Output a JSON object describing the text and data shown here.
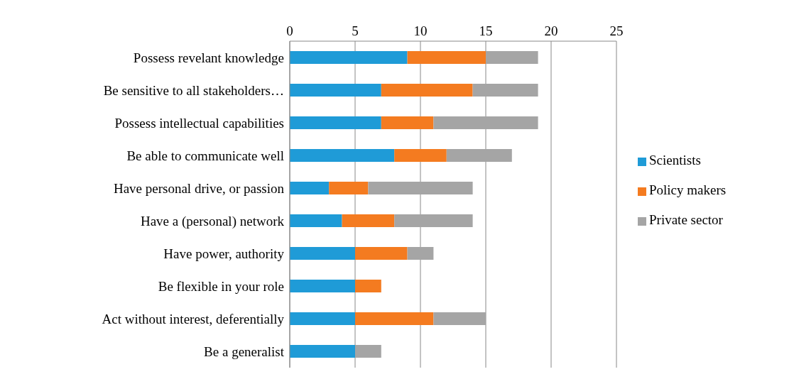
{
  "chart_data": {
    "type": "bar",
    "orientation": "horizontal",
    "stacked": true,
    "categories": [
      "Possess revelant knowledge",
      "Be sensitive to all stakeholders…",
      "Possess intellectual capabilities",
      "Be able to communicate well",
      "Have personal drive, or passion",
      "Have a (personal) network",
      "Have power, authority",
      "Be flexible in your role",
      "Act without interest, deferentially",
      "Be a generalist"
    ],
    "series": [
      {
        "name": "Scientists",
        "color": "#1f9bd7",
        "values": [
          9,
          7,
          7,
          8,
          3,
          4,
          5,
          5,
          5,
          5
        ]
      },
      {
        "name": "Policy makers",
        "color": "#f47b20",
        "values": [
          6,
          7,
          4,
          4,
          3,
          4,
          4,
          2,
          6,
          0
        ]
      },
      {
        "name": "Private sector",
        "color": "#a5a5a5",
        "values": [
          4,
          5,
          8,
          5,
          8,
          6,
          2,
          0,
          4,
          2
        ]
      }
    ],
    "xlim": [
      0,
      25
    ],
    "xticks": [
      0,
      5,
      10,
      15,
      20,
      25
    ],
    "grid": "x",
    "legend": "right"
  }
}
